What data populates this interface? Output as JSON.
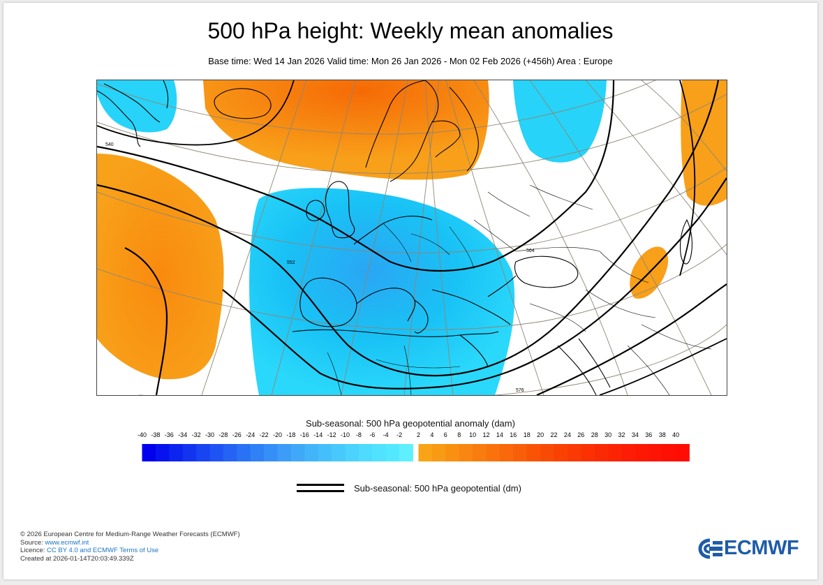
{
  "title": "500 hPa height: Weekly mean anomalies",
  "subtitle": "Base time: Wed 14 Jan 2026 Valid time: Mon 26 Jan 2026 - Mon 02 Feb 2026 (+456h) Area : Europe",
  "contour_labels": {
    "c540": "540",
    "c552": "552",
    "c564": "564",
    "c576": "576"
  },
  "anomaly_legend": {
    "title": "Sub-seasonal: 500 hPa geopotential anomaly (dam)",
    "negative_ticks": [
      "-40",
      "-38",
      "-36",
      "-34",
      "-32",
      "-30",
      "-28",
      "-26",
      "-24",
      "-22",
      "-20",
      "-18",
      "-16",
      "-14",
      "-12",
      "-10",
      "-8",
      "-6",
      "-4",
      "-2"
    ],
    "positive_ticks": [
      "2",
      "4",
      "6",
      "8",
      "10",
      "12",
      "14",
      "16",
      "18",
      "20",
      "22",
      "24",
      "26",
      "28",
      "30",
      "32",
      "34",
      "36",
      "38",
      "40"
    ],
    "negative_colors": [
      "#0000ee",
      "#0613ef",
      "#0c24f0",
      "#1234f1",
      "#1844f2",
      "#1e54f3",
      "#2463f4",
      "#2a72f5",
      "#3081f6",
      "#368ff7",
      "#3c9cf8",
      "#3fa8f9",
      "#42b4fa",
      "#45bffb",
      "#48c9fc",
      "#4bd2fd",
      "#4edbfe",
      "#50e2fe",
      "#53e8ff",
      "#5ef0ff"
    ],
    "positive_colors": [
      "#f9a416",
      "#f99a14",
      "#f99012",
      "#f98610",
      "#f97c0e",
      "#f9720c",
      "#f9680a",
      "#f95e08",
      "#f95406",
      "#f94a05",
      "#fa4104",
      "#fa3904",
      "#fb3104",
      "#fb2a04",
      "#fc2304",
      "#fc1d04",
      "#fd1804",
      "#fd1404",
      "#fe1004",
      "#ff0c04"
    ]
  },
  "contour_legend": {
    "label": "Sub-seasonal: 500 hPa geopotential (dm)"
  },
  "footer": {
    "line1": "© 2026 European Centre for Medium-Range Weather Forecasts (ECMWF)",
    "source_prefix": "Source: ",
    "source_link": "www.ecmwf.int",
    "licence_prefix": "Licence: ",
    "licence_link": "CC BY 4.0 and ECMWF Terms of Use",
    "created": "Created at 2026-01-14T20:03:49.339Z"
  },
  "logo": {
    "text": "ECMWF"
  },
  "colors": {
    "positive_anomaly": "#f59a10",
    "negative_anomaly": "#11cdf0",
    "brand": "#1f5ca8"
  }
}
